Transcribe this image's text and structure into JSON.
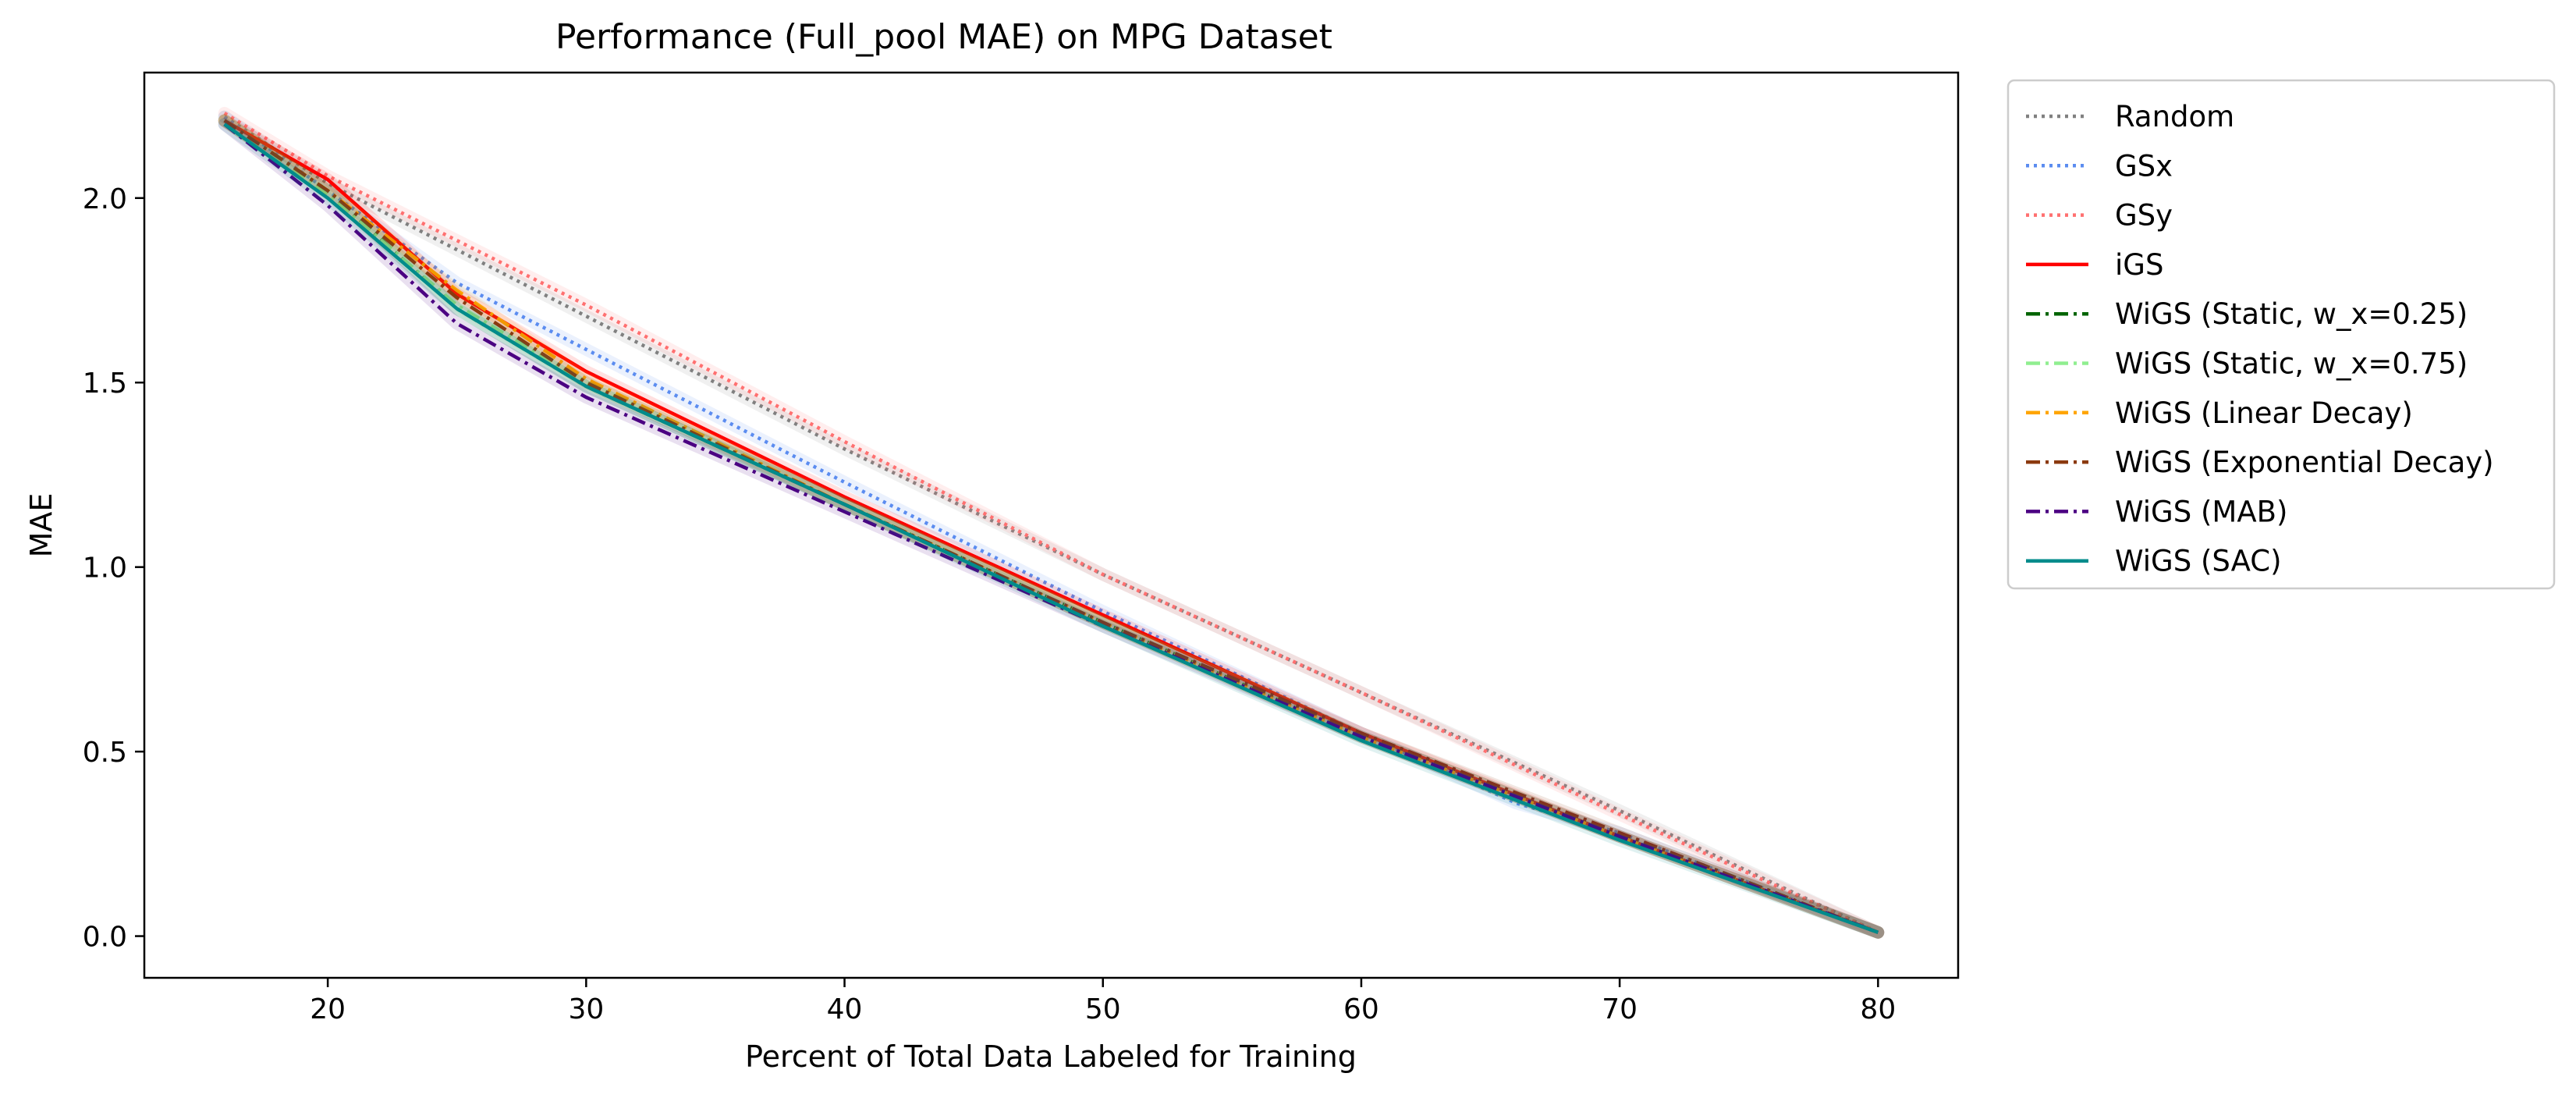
{
  "chart_data": {
    "type": "line",
    "title": "Performance (Full_pool MAE) on MPG Dataset",
    "xlabel": "Percent of Total Data Labeled for Training",
    "ylabel": "MAE",
    "xlim": [
      12.9,
      83.1
    ],
    "ylim": [
      -0.113,
      2.34
    ],
    "x_ticks": [
      20,
      30,
      40,
      50,
      60,
      70,
      80
    ],
    "y_ticks": [
      0.0,
      0.5,
      1.0,
      1.5,
      2.0
    ],
    "x_tick_labels": [
      "20",
      "30",
      "40",
      "50",
      "60",
      "70",
      "80"
    ],
    "y_tick_labels": [
      "0.0",
      "0.5",
      "1.0",
      "1.5",
      "2.0"
    ],
    "grid": false,
    "legend_position": "outside-right-top",
    "series": [
      {
        "name": "Random",
        "color": "#808080",
        "style": "dotted",
        "x": [
          16,
          20,
          30,
          40,
          50,
          60,
          70,
          80
        ],
        "y": [
          2.22,
          2.04,
          1.68,
          1.32,
          0.98,
          0.66,
          0.34,
          0.01
        ]
      },
      {
        "name": "GSx",
        "color": "#5b8cf0",
        "style": "dotted",
        "x": [
          16,
          20,
          25,
          30,
          40,
          50,
          60,
          66,
          70,
          80
        ],
        "y": [
          2.22,
          2.02,
          1.77,
          1.59,
          1.23,
          0.88,
          0.55,
          0.36,
          0.28,
          0.01
        ]
      },
      {
        "name": "GSy",
        "color": "#ff7070",
        "style": "dotted",
        "x": [
          16,
          20,
          30,
          40,
          50,
          60,
          70,
          80
        ],
        "y": [
          2.23,
          2.06,
          1.71,
          1.34,
          0.98,
          0.66,
          0.33,
          0.01
        ]
      },
      {
        "name": "iGS",
        "color": "#ff0000",
        "style": "solid",
        "x": [
          16,
          20,
          25,
          30,
          40,
          50,
          60,
          70,
          80
        ],
        "y": [
          2.21,
          2.05,
          1.74,
          1.53,
          1.19,
          0.87,
          0.55,
          0.27,
          0.01
        ]
      },
      {
        "name": "WiGS (Static, w_x=0.25)",
        "color": "#006400",
        "style": "dashdot",
        "x": [
          16,
          20,
          25,
          30,
          40,
          50,
          60,
          70,
          80
        ],
        "y": [
          2.21,
          2.02,
          1.7,
          1.49,
          1.17,
          0.85,
          0.54,
          0.27,
          0.01
        ]
      },
      {
        "name": "WiGS (Static, w_x=0.75)",
        "color": "#90ee90",
        "style": "dashdot",
        "x": [
          16,
          20,
          25,
          30,
          40,
          50,
          60,
          70,
          80
        ],
        "y": [
          2.21,
          2.01,
          1.71,
          1.5,
          1.17,
          0.85,
          0.54,
          0.27,
          0.01
        ]
      },
      {
        "name": "WiGS (Linear Decay)",
        "color": "#ffa500",
        "style": "dashdot",
        "x": [
          16,
          20,
          25,
          30,
          40,
          50,
          60,
          70,
          80
        ],
        "y": [
          2.21,
          2.02,
          1.75,
          1.51,
          1.17,
          0.85,
          0.54,
          0.27,
          0.01
        ]
      },
      {
        "name": "WiGS (Exponential Decay)",
        "color": "#8b3a0f",
        "style": "dashdot",
        "x": [
          16,
          20,
          25,
          30,
          40,
          50,
          60,
          70,
          80
        ],
        "y": [
          2.21,
          2.02,
          1.73,
          1.5,
          1.17,
          0.85,
          0.55,
          0.28,
          0.01
        ]
      },
      {
        "name": "WiGS (MAB)",
        "color": "#4b0082",
        "style": "dashdot",
        "x": [
          16,
          20,
          25,
          30,
          40,
          50,
          60,
          70,
          80
        ],
        "y": [
          2.2,
          1.98,
          1.66,
          1.46,
          1.15,
          0.84,
          0.54,
          0.27,
          0.01
        ]
      },
      {
        "name": "WiGS (SAC)",
        "color": "#008b8b",
        "style": "solid",
        "x": [
          16,
          20,
          25,
          30,
          40,
          50,
          60,
          70,
          80
        ],
        "y": [
          2.2,
          2.0,
          1.7,
          1.49,
          1.17,
          0.84,
          0.53,
          0.26,
          0.01
        ]
      }
    ]
  }
}
